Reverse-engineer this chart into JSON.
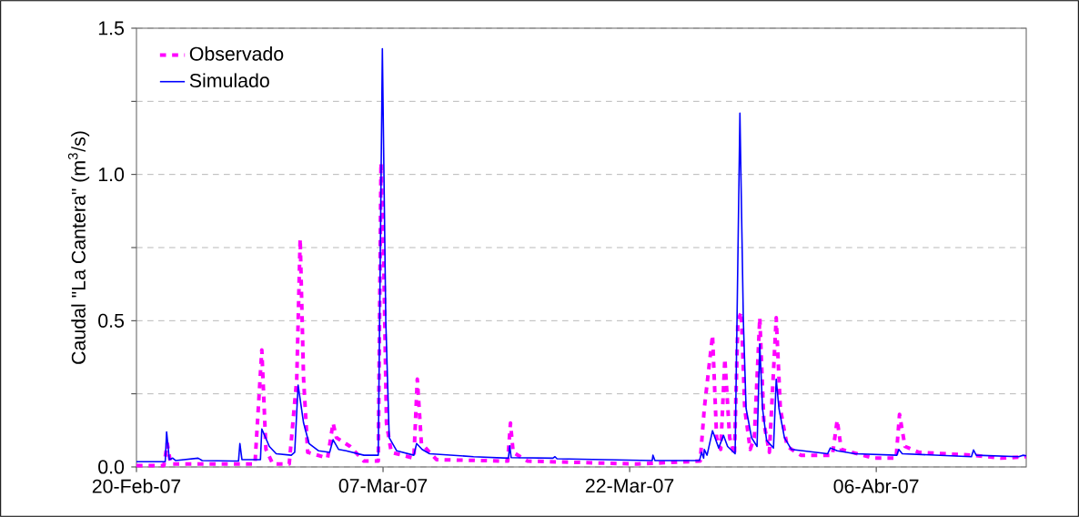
{
  "chart_data": {
    "type": "line",
    "ylabel": "Caudal \"La Cantera\" (m$^{3}$/s)",
    "xlim": [
      "2007-02-20T00:00",
      "2007-04-15T03:00"
    ],
    "xticks": [
      {
        "value": "2007-02-20",
        "label": "20-Feb-07"
      },
      {
        "value": "2007-03-07",
        "label": "07-Mar-07"
      },
      {
        "value": "2007-03-22",
        "label": "22-Mar-07"
      },
      {
        "value": "2007-04-06",
        "label": "06-Abr-07"
      }
    ],
    "ylim": [
      0,
      1.5
    ],
    "yticks": [
      {
        "value": 0,
        "label": "0.0"
      },
      {
        "value": 0.25,
        "label": null
      },
      {
        "value": 0.5,
        "label": "0.5"
      },
      {
        "value": 0.75,
        "label": null
      },
      {
        "value": 1.0,
        "label": "1.0"
      },
      {
        "value": 1.25,
        "label": null
      },
      {
        "value": 1.5,
        "label": "1.5"
      }
    ],
    "grid": "y",
    "legend": "top left",
    "marker": "none",
    "series": [
      {
        "name": "Observado",
        "color": "#ff00ff",
        "line_style": "dashed",
        "x": [
          "2007-02-20T00:00",
          "2007-02-21T16:00",
          "2007-02-21T21:00",
          "2007-02-22T02:00",
          "2007-02-27T05:00",
          "2007-02-27T15:00",
          "2007-02-27T21:00",
          "2007-02-28T07:00",
          "2007-03-01T07:00",
          "2007-03-01T18:00",
          "2007-03-01T23:00",
          "2007-03-02T04:00",
          "2007-03-02T10:00",
          "2007-03-03T15:00",
          "2007-03-03T23:00",
          "2007-03-04T04:00",
          "2007-03-05T00:00",
          "2007-03-05T20:00",
          "2007-03-06T17:00",
          "2007-03-06T21:00",
          "2007-03-07T01:00",
          "2007-03-07T05:00",
          "2007-03-07T12:00",
          "2007-03-08T21:00",
          "2007-03-09T02:00",
          "2007-03-09T08:00",
          "2007-03-10T06:00",
          "2007-03-14T14:00",
          "2007-03-14T18:00",
          "2007-03-14T22:00",
          "2007-03-15T19:00",
          "2007-03-22T11:00",
          "2007-03-26T07:00",
          "2007-03-26T13:00",
          "2007-03-27T01:00",
          "2007-03-27T07:00",
          "2007-03-27T13:00",
          "2007-03-27T19:00",
          "2007-03-28T02:00",
          "2007-03-28T09:00",
          "2007-03-28T14:00",
          "2007-03-28T19:00",
          "2007-03-29T00:00",
          "2007-03-29T08:00",
          "2007-03-29T14:00",
          "2007-03-29T22:00",
          "2007-03-30T04:00",
          "2007-03-30T12:00",
          "2007-03-30T22:00",
          "2007-03-31T04:00",
          "2007-03-31T14:00",
          "2007-04-01T10:00",
          "2007-04-03T08:00",
          "2007-04-03T15:00",
          "2007-04-03T21:00",
          "2007-04-05T20:00",
          "2007-04-07T05:00",
          "2007-04-07T10:00",
          "2007-04-07T18:00",
          "2007-04-08T14:00",
          "2007-04-11T22:00",
          "2007-04-13T14:00",
          "2007-04-15T03:00"
        ],
        "values": [
          0.005,
          0.005,
          0.08,
          0.01,
          0.01,
          0.4,
          0.06,
          0.01,
          0.01,
          0.3,
          0.78,
          0.3,
          0.05,
          0.03,
          0.15,
          0.1,
          0.07,
          0.02,
          0.02,
          1.04,
          0.7,
          0.15,
          0.05,
          0.03,
          0.3,
          0.08,
          0.025,
          0.02,
          0.15,
          0.05,
          0.02,
          0.01,
          0.02,
          0.2,
          0.45,
          0.1,
          0.06,
          0.37,
          0.1,
          0.04,
          0.5,
          0.53,
          0.2,
          0.06,
          0.1,
          0.51,
          0.15,
          0.05,
          0.51,
          0.2,
          0.07,
          0.04,
          0.04,
          0.16,
          0.06,
          0.03,
          0.03,
          0.18,
          0.07,
          0.05,
          0.04,
          0.03,
          0.035
        ]
      },
      {
        "name": "Simulado",
        "color": "#0000ff",
        "line_style": "solid",
        "x": [
          "2007-02-20T00:00",
          "2007-02-21T18:00",
          "2007-02-21T20:00",
          "2007-02-22T00:00",
          "2007-02-22T05:00",
          "2007-02-22T09:00",
          "2007-02-23T18:00",
          "2007-02-24T00:00",
          "2007-02-26T05:00",
          "2007-02-26T07:00",
          "2007-02-26T10:00",
          "2007-02-27T13:00",
          "2007-02-27T15:00",
          "2007-02-28T02:00",
          "2007-02-28T12:00",
          "2007-03-01T10:00",
          "2007-03-01T15:00",
          "2007-03-01T20:00",
          "2007-03-02T04:00",
          "2007-03-02T12:00",
          "2007-03-03T02:00",
          "2007-03-03T18:00",
          "2007-03-03T23:00",
          "2007-03-04T07:00",
          "2007-03-04T18:00",
          "2007-03-05T20:00",
          "2007-03-06T17:00",
          "2007-03-06T23:00",
          "2007-03-07T04:00",
          "2007-03-07T09:00",
          "2007-03-07T20:00",
          "2007-03-08T21:00",
          "2007-03-09T01:00",
          "2007-03-09T09:00",
          "2007-03-09T20:00",
          "2007-03-12T12:00",
          "2007-03-14T15:00",
          "2007-03-14T17:00",
          "2007-03-14T19:00",
          "2007-03-17T08:00",
          "2007-03-17T11:00",
          "2007-03-17T14:00",
          "2007-03-23T09:00",
          "2007-03-23T10:00",
          "2007-03-23T13:00",
          "2007-03-26T06:00",
          "2007-03-26T09:00",
          "2007-03-26T12:00",
          "2007-03-26T13:00",
          "2007-03-26T17:00",
          "2007-03-27T01:00",
          "2007-03-27T10:00",
          "2007-03-27T17:00",
          "2007-03-27T23:00",
          "2007-03-28T10:00",
          "2007-03-28T17:00",
          "2007-03-28T22:00",
          "2007-03-29T02:00",
          "2007-03-29T10:00",
          "2007-03-29T18:00",
          "2007-03-29T22:00",
          "2007-03-30T02:00",
          "2007-03-30T08:00",
          "2007-03-30T18:00",
          "2007-03-30T22:00",
          "2007-03-31T02:00",
          "2007-03-31T10:00",
          "2007-03-31T20:00",
          "2007-04-03T01:00",
          "2007-04-03T05:00",
          "2007-04-03T15:00",
          "2007-04-04T17:00",
          "2007-04-07T06:00",
          "2007-04-07T09:00",
          "2007-04-07T14:00",
          "2007-04-11T19:00",
          "2007-04-11T22:00",
          "2007-04-12T02:00",
          "2007-04-14T16:00",
          "2007-04-14T22:00",
          "2007-04-15T03:00"
        ],
        "values": [
          0.018,
          0.018,
          0.12,
          0.025,
          0.03,
          0.022,
          0.03,
          0.022,
          0.02,
          0.08,
          0.025,
          0.025,
          0.13,
          0.07,
          0.045,
          0.04,
          0.05,
          0.28,
          0.15,
          0.08,
          0.055,
          0.05,
          0.093,
          0.06,
          0.055,
          0.04,
          0.04,
          1.43,
          0.5,
          0.1,
          0.055,
          0.04,
          0.08,
          0.06,
          0.045,
          0.035,
          0.03,
          0.072,
          0.032,
          0.03,
          0.035,
          0.028,
          0.022,
          0.04,
          0.022,
          0.022,
          0.05,
          0.03,
          0.06,
          0.04,
          0.124,
          0.065,
          0.108,
          0.07,
          0.045,
          1.21,
          0.5,
          0.2,
          0.1,
          0.07,
          0.42,
          0.2,
          0.09,
          0.065,
          0.3,
          0.2,
          0.1,
          0.06,
          0.045,
          0.065,
          0.055,
          0.045,
          0.04,
          0.06,
          0.045,
          0.035,
          0.058,
          0.04,
          0.035,
          0.04,
          0.038
        ]
      }
    ]
  }
}
